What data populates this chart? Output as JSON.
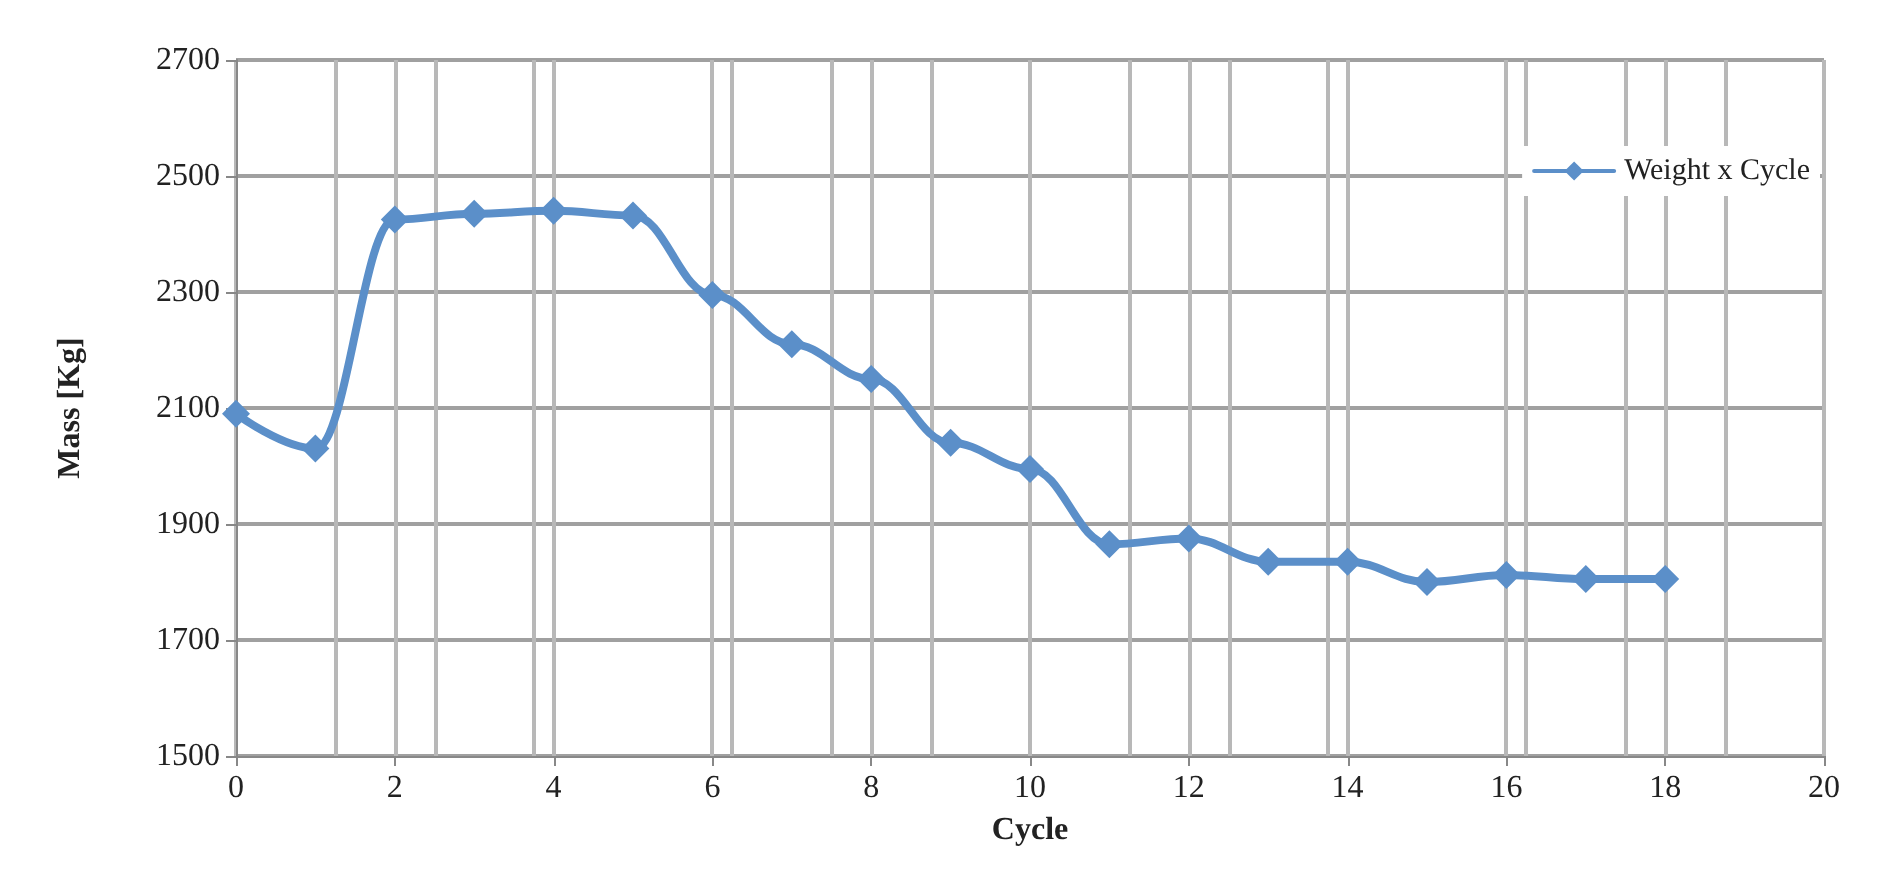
{
  "chart_data": {
    "type": "line",
    "xlabel": "Cycle",
    "ylabel": "Mass [Kg]",
    "x": [
      0,
      1,
      2,
      3,
      4,
      5,
      6,
      7,
      8,
      9,
      10,
      11,
      12,
      13,
      14,
      15,
      16,
      17,
      18
    ],
    "series": [
      {
        "name": "Weight x Cycle",
        "color": "#5b8fc9",
        "values": [
          2090,
          2030,
          2425,
          2435,
          2440,
          2432,
          2295,
          2210,
          2150,
          2040,
          1995,
          1865,
          1875,
          1835,
          1835,
          1800,
          1812,
          1805,
          1805
        ]
      }
    ],
    "xlim": [
      0,
      20
    ],
    "xticks": [
      0,
      2,
      4,
      6,
      8,
      10,
      12,
      14,
      16,
      18,
      20
    ],
    "ylim": [
      1500,
      2700
    ],
    "yticks": [
      1500,
      1700,
      1900,
      2100,
      2300,
      2500,
      2700
    ],
    "grid": true,
    "legend": "top right",
    "marker": "diamond",
    "line_style": "solid"
  }
}
